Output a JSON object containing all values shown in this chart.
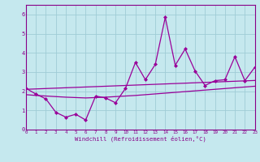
{
  "background_color": "#c5e8ee",
  "grid_color": "#9fccd6",
  "line_color": "#990099",
  "x_values": [
    0,
    1,
    2,
    3,
    4,
    5,
    6,
    7,
    8,
    9,
    10,
    11,
    12,
    13,
    14,
    15,
    16,
    17,
    18,
    19,
    20,
    21,
    22,
    23
  ],
  "y_data": [
    2.15,
    1.85,
    1.6,
    0.9,
    0.65,
    0.8,
    0.5,
    1.75,
    1.65,
    1.4,
    2.15,
    3.5,
    2.6,
    3.4,
    5.85,
    3.35,
    4.2,
    3.05,
    2.3,
    2.55,
    2.6,
    3.8,
    2.55,
    3.25
  ],
  "y_upper": [
    2.1,
    2.12,
    2.14,
    2.16,
    2.18,
    2.2,
    2.22,
    2.24,
    2.26,
    2.28,
    2.3,
    2.32,
    2.34,
    2.36,
    2.38,
    2.4,
    2.42,
    2.44,
    2.46,
    2.48,
    2.5,
    2.52,
    2.54,
    2.56
  ],
  "y_lower": [
    1.82,
    1.78,
    1.75,
    1.72,
    1.69,
    1.67,
    1.65,
    1.67,
    1.69,
    1.72,
    1.75,
    1.78,
    1.82,
    1.86,
    1.9,
    1.94,
    1.98,
    2.02,
    2.06,
    2.1,
    2.14,
    2.18,
    2.22,
    2.26
  ],
  "xlim": [
    0,
    23
  ],
  "ylim": [
    0,
    6.5
  ],
  "yticks": [
    0,
    1,
    2,
    3,
    4,
    5,
    6
  ],
  "xticks": [
    0,
    1,
    2,
    3,
    4,
    5,
    6,
    7,
    8,
    9,
    10,
    11,
    12,
    13,
    14,
    15,
    16,
    17,
    18,
    19,
    20,
    21,
    22,
    23
  ],
  "xlabel": "Windchill (Refroidissement éolien,°C)",
  "tick_color": "#880088",
  "spine_color": "#880088"
}
